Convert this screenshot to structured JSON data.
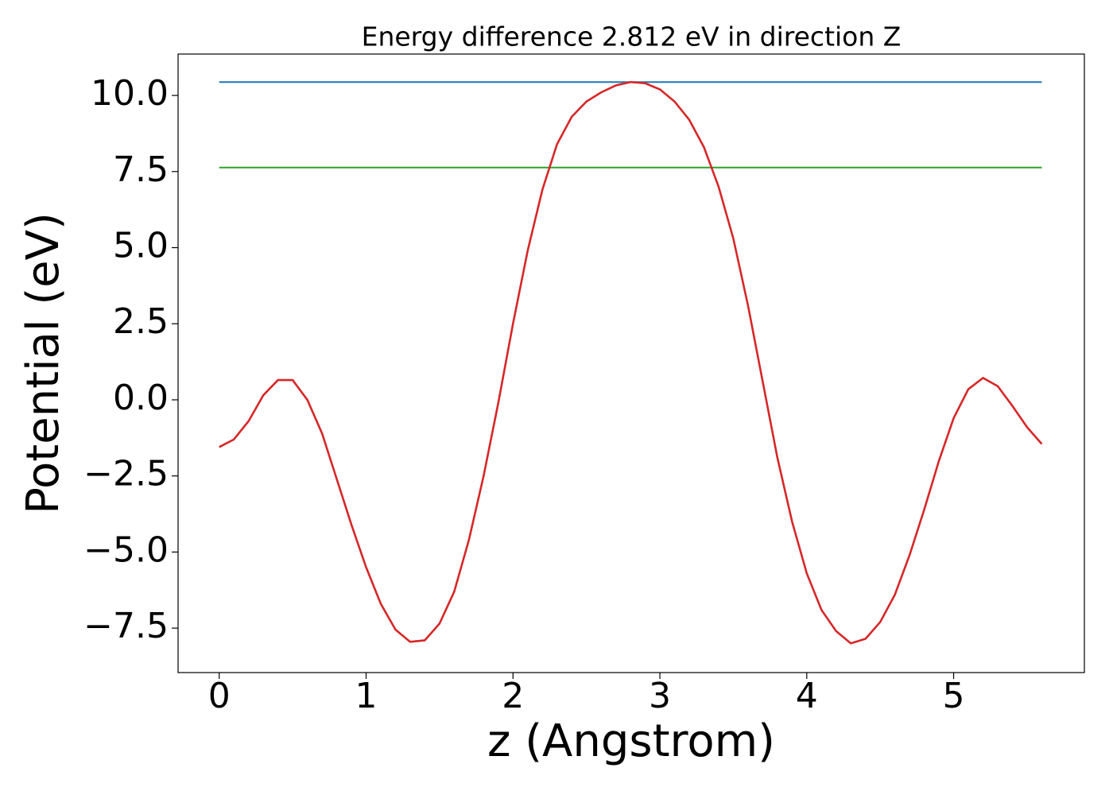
{
  "chart_data": {
    "type": "line",
    "title": "Energy difference 2.812 eV in direction Z",
    "x_label": "z (Angstrom)",
    "y_label": "Potential (eV)",
    "xlim": [
      -0.28,
      5.89
    ],
    "ylim": [
      -8.96,
      11.36
    ],
    "xticks": [
      0,
      1,
      2,
      3,
      4,
      5
    ],
    "yticks": [
      {
        "value": -7.5,
        "label": "−7.5"
      },
      {
        "value": -5,
        "label": "−5.0"
      },
      {
        "value": -2.5,
        "label": "−2.5"
      },
      {
        "value": 0,
        "label": "0.0"
      },
      {
        "value": 2.5,
        "label": "2.5"
      },
      {
        "value": 5,
        "label": "5.0"
      },
      {
        "value": 7.5,
        "label": "7.5"
      },
      {
        "value": 10,
        "label": "10.0"
      }
    ],
    "x": [
      0,
      0.1,
      0.2,
      0.3,
      0.4,
      0.5,
      0.6,
      0.7,
      0.8,
      0.9,
      1.0,
      1.1,
      1.2,
      1.3,
      1.4,
      1.5,
      1.6,
      1.7,
      1.8,
      1.9,
      2.0,
      2.1,
      2.2,
      2.3,
      2.4,
      2.5,
      2.6,
      2.7,
      2.8,
      2.9,
      3.0,
      3.1,
      3.2,
      3.3,
      3.4,
      3.5,
      3.6,
      3.7,
      3.8,
      3.9,
      4.0,
      4.1,
      4.2,
      4.3,
      4.4,
      4.5,
      4.6,
      4.7,
      4.8,
      4.9,
      5.0,
      5.1,
      5.2,
      5.3,
      5.4,
      5.5,
      5.6
    ],
    "series": [
      {
        "color": "#d62728",
        "values": [
          -1.55,
          -1.3,
          -0.7,
          0.15,
          0.65,
          0.65,
          0.0,
          -1.1,
          -2.6,
          -4.1,
          -5.5,
          -6.7,
          -7.55,
          -7.95,
          -7.9,
          -7.35,
          -6.3,
          -4.6,
          -2.5,
          -0.1,
          2.5,
          4.9,
          6.9,
          8.4,
          9.3,
          9.8,
          10.1,
          10.33,
          10.44,
          10.4,
          10.2,
          9.8,
          9.2,
          8.3,
          7.0,
          5.3,
          3.1,
          0.6,
          -1.9,
          -4.0,
          -5.7,
          -6.9,
          -7.6,
          -8.0,
          -7.85,
          -7.3,
          -6.4,
          -5.1,
          -3.6,
          -2.0,
          -0.6,
          0.35,
          0.72,
          0.45,
          -0.2,
          -0.9,
          -1.45
        ]
      }
    ],
    "hlines": [
      {
        "y": 10.44,
        "xmin": 0,
        "xmax": 5.6,
        "color": "#1f77b4"
      },
      {
        "y": 7.63,
        "xmin": 0,
        "xmax": 5.6,
        "color": "#2ca02c"
      }
    ]
  }
}
